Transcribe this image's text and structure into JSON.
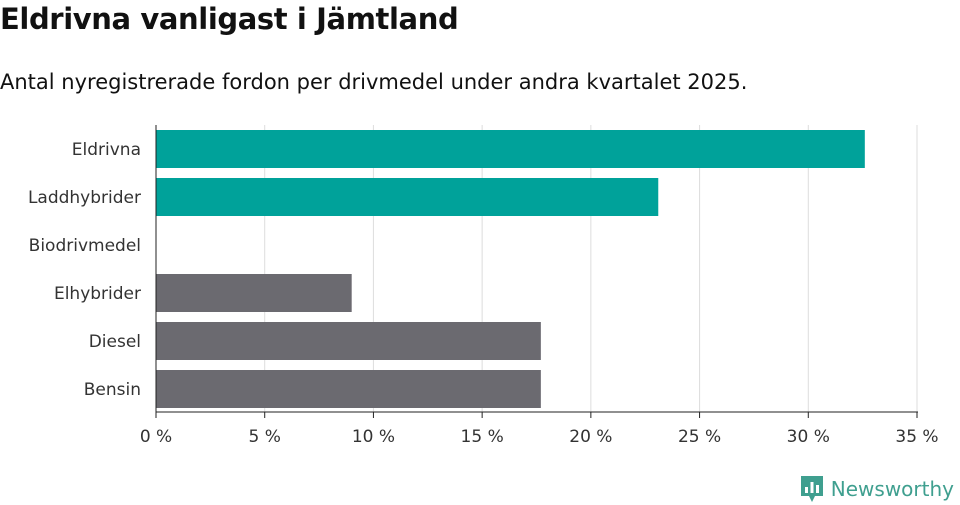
{
  "header": {
    "title": "Eldrivna vanligast i Jämtland",
    "subtitle": "Antal nyregistrerade fordon per drivmedel under andra kvartalet 2025."
  },
  "chart_data": {
    "type": "bar",
    "orientation": "horizontal",
    "categories": [
      "Eldrivna",
      "Laddhybrider",
      "Biodrivmedel",
      "Elhybrider",
      "Diesel",
      "Bensin"
    ],
    "values": [
      32.6,
      23.1,
      0,
      9.0,
      17.7,
      17.7
    ],
    "colors": [
      "#00a29a",
      "#00a29a",
      "#00a29a",
      "#6b6a70",
      "#6b6a70",
      "#6b6a70"
    ],
    "xlim": [
      0,
      35
    ],
    "ticks": [
      0,
      5,
      10,
      15,
      20,
      25,
      30,
      35
    ],
    "tick_labels": [
      "0 %",
      "5 %",
      "10 %",
      "15 %",
      "20 %",
      "25 %",
      "30 %",
      "35 %"
    ],
    "grid": true
  },
  "brand": {
    "name": "Newsworthy",
    "icon": "newsworthy-logo-icon",
    "color": "#3f9f8f"
  }
}
